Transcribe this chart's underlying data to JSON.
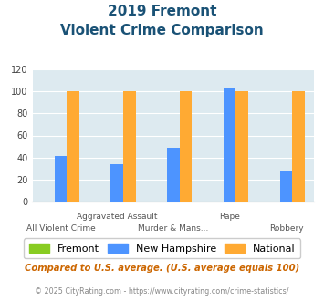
{
  "title_line1": "2019 Fremont",
  "title_line2": "Violent Crime Comparison",
  "categories": [
    "All Violent Crime",
    "Aggravated Assault",
    "Murder & Mans...",
    "Rape",
    "Robbery"
  ],
  "series": {
    "Fremont": [
      0,
      0,
      0,
      0,
      0
    ],
    "New Hampshire": [
      41,
      34,
      49,
      103,
      28
    ],
    "National": [
      100,
      100,
      100,
      100,
      100
    ]
  },
  "colors": {
    "Fremont": "#88cc22",
    "New Hampshire": "#4d94ff",
    "National": "#ffaa33"
  },
  "ylim": [
    0,
    120
  ],
  "yticks": [
    0,
    20,
    40,
    60,
    80,
    100,
    120
  ],
  "plot_area_bg": "#ddeaf0",
  "title_color": "#1a5276",
  "footnote": "Compared to U.S. average. (U.S. average equals 100)",
  "copyright": "© 2025 CityRating.com - https://www.cityrating.com/crime-statistics/",
  "footnote_color": "#cc6600",
  "copyright_color": "#888888"
}
